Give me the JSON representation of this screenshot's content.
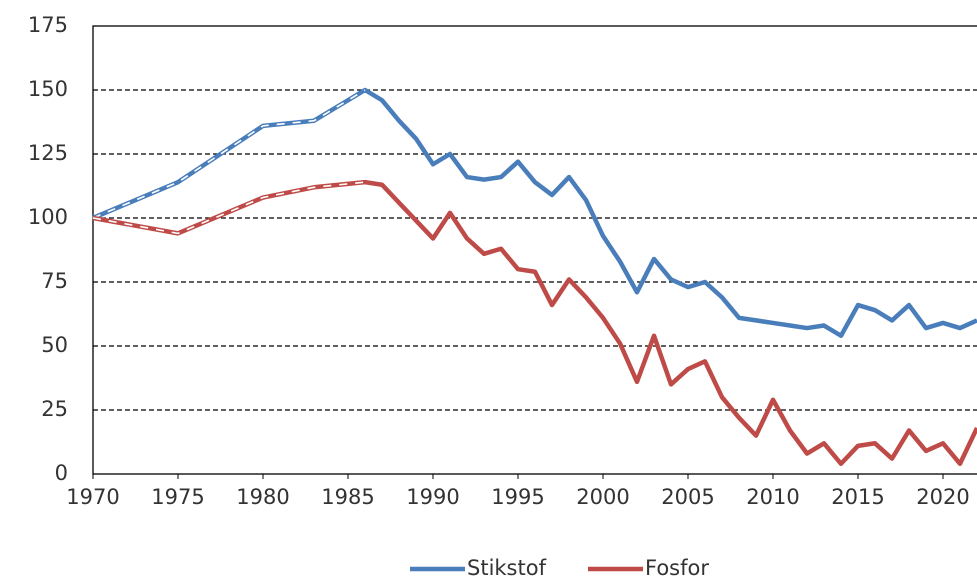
{
  "chart_data": {
    "type": "line",
    "x": [
      1970,
      1975,
      1980,
      1983,
      1986,
      1987,
      1988,
      1989,
      1990,
      1991,
      1992,
      1993,
      1994,
      1995,
      1996,
      1997,
      1998,
      1999,
      2000,
      2001,
      2002,
      2003,
      2004,
      2005,
      2006,
      2007,
      2008,
      2009,
      2010,
      2011,
      2012,
      2013,
      2014,
      2015,
      2016,
      2017,
      2018,
      2019,
      2020,
      2021,
      2022
    ],
    "series": [
      {
        "name": "Stikstof",
        "color": "#4a7ebb",
        "values": [
          100,
          114,
          136,
          138,
          150,
          146,
          138,
          131,
          121,
          125,
          116,
          115,
          116,
          122,
          114,
          109,
          116,
          107,
          93,
          83,
          71,
          84,
          76,
          73,
          75,
          69,
          61,
          60,
          59,
          58,
          57,
          58,
          54,
          66,
          64,
          60,
          66,
          57,
          59,
          57,
          60
        ]
      },
      {
        "name": "Fosfor",
        "color": "#be4b48",
        "values": [
          100,
          94,
          108,
          112,
          114,
          113,
          106,
          99,
          92,
          102,
          92,
          86,
          88,
          80,
          79,
          66,
          76,
          69,
          61,
          51,
          36,
          54,
          35,
          41,
          44,
          30,
          22,
          15,
          29,
          17,
          8,
          12,
          4,
          11,
          12,
          6,
          17,
          9,
          12,
          4,
          18
        ]
      }
    ],
    "dashed_until": 1986,
    "xlim": [
      1970,
      2022
    ],
    "xticks": [
      1970,
      1975,
      1980,
      1985,
      1990,
      1995,
      2000,
      2005,
      2010,
      2015,
      2020
    ],
    "ylim": [
      0,
      175
    ],
    "yticks": [
      0,
      25,
      50,
      75,
      100,
      125,
      150,
      175
    ],
    "grid": true,
    "legend": "bottom"
  }
}
